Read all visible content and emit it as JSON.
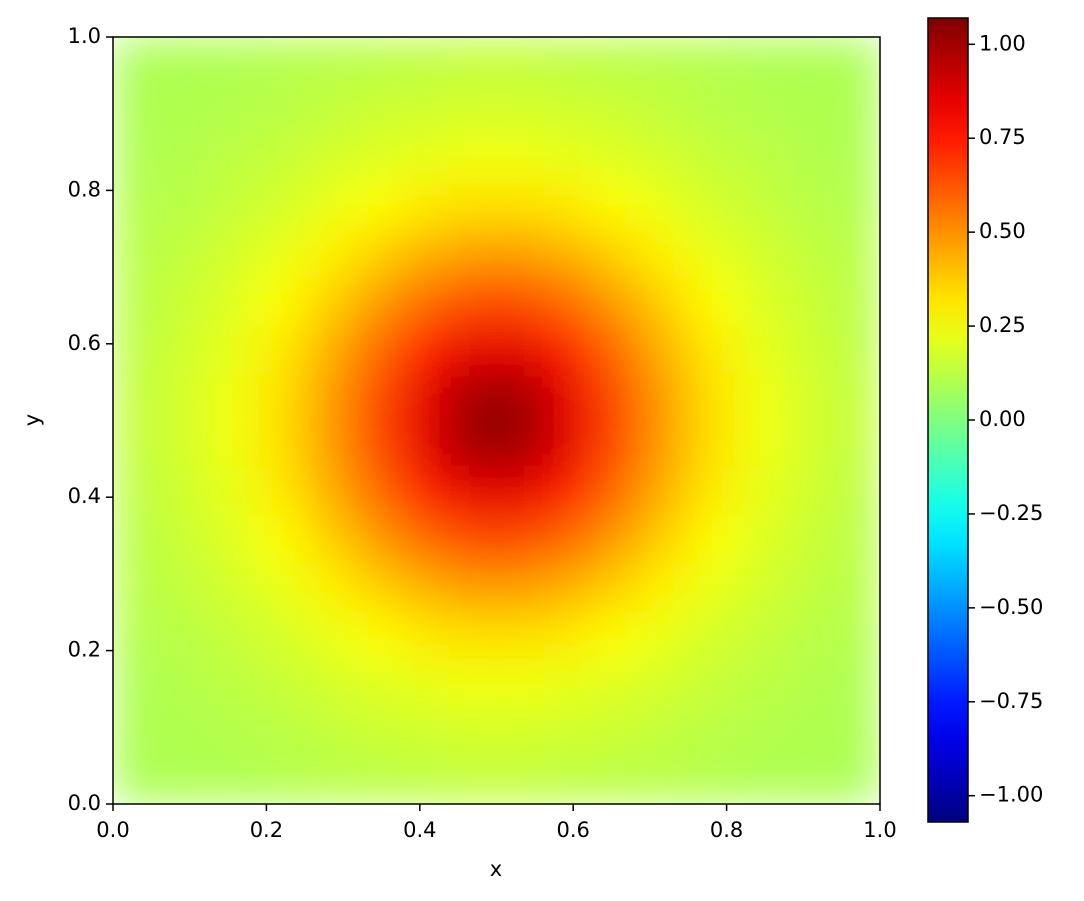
{
  "chart_data": {
    "type": "heatmap",
    "colormap": "jet",
    "xlabel": "x",
    "ylabel": "y",
    "xlim": [
      0,
      1
    ],
    "ylim": [
      0,
      1
    ],
    "xticks": [
      {
        "value": 0,
        "label": "0.0"
      },
      0.2,
      0.4,
      0.6,
      0.8,
      {
        "value": 1,
        "label": "1.0"
      }
    ],
    "yticks": [
      {
        "value": 0,
        "label": "0.0"
      },
      0.2,
      0.4,
      0.6,
      0.8,
      {
        "value": 1,
        "label": "1.0"
      }
    ],
    "clim": [
      -1.07,
      1.07
    ],
    "colorbar_ticks": [
      {
        "value": -1,
        "label": "−1.00"
      },
      {
        "value": -0.75,
        "label": "−0.75"
      },
      {
        "value": -0.5,
        "label": "−0.50"
      },
      {
        "value": -0.25,
        "label": "−0.25"
      },
      {
        "value": 0,
        "label": "0.00"
      },
      0.25,
      {
        "value": 0.5,
        "label": "0.50"
      },
      0.75,
      {
        "value": 1,
        "label": "1.00"
      }
    ],
    "z": [
      [
        0.09,
        0.1,
        0.1,
        0.11,
        0.12,
        0.12,
        0.13,
        0.14,
        0.14,
        0.13,
        0.12,
        0.12,
        0.11,
        0.1,
        0.1,
        0.09
      ],
      [
        0.1,
        0.1,
        0.11,
        0.12,
        0.14,
        0.16,
        0.17,
        0.18,
        0.18,
        0.17,
        0.16,
        0.14,
        0.12,
        0.11,
        0.1,
        0.1
      ],
      [
        0.1,
        0.11,
        0.13,
        0.15,
        0.18,
        0.2,
        0.22,
        0.24,
        0.24,
        0.22,
        0.2,
        0.18,
        0.15,
        0.13,
        0.11,
        0.1
      ],
      [
        0.11,
        0.12,
        0.15,
        0.18,
        0.22,
        0.27,
        0.31,
        0.33,
        0.33,
        0.31,
        0.27,
        0.22,
        0.18,
        0.15,
        0.12,
        0.11
      ],
      [
        0.12,
        0.14,
        0.18,
        0.22,
        0.29,
        0.36,
        0.43,
        0.47,
        0.47,
        0.43,
        0.36,
        0.29,
        0.22,
        0.18,
        0.14,
        0.12
      ],
      [
        0.12,
        0.16,
        0.2,
        0.27,
        0.36,
        0.47,
        0.58,
        0.65,
        0.65,
        0.58,
        0.47,
        0.36,
        0.27,
        0.2,
        0.16,
        0.12
      ],
      [
        0.13,
        0.17,
        0.22,
        0.31,
        0.43,
        0.58,
        0.74,
        0.85,
        0.85,
        0.74,
        0.58,
        0.43,
        0.31,
        0.22,
        0.17,
        0.13
      ],
      [
        0.14,
        0.18,
        0.24,
        0.33,
        0.47,
        0.65,
        0.85,
        1.01,
        1.01,
        0.85,
        0.65,
        0.47,
        0.33,
        0.24,
        0.18,
        0.14
      ],
      [
        0.14,
        0.18,
        0.24,
        0.33,
        0.47,
        0.65,
        0.85,
        1.01,
        1.01,
        0.85,
        0.65,
        0.47,
        0.33,
        0.24,
        0.18,
        0.14
      ],
      [
        0.13,
        0.17,
        0.22,
        0.31,
        0.43,
        0.58,
        0.74,
        0.85,
        0.85,
        0.74,
        0.58,
        0.43,
        0.31,
        0.22,
        0.17,
        0.13
      ],
      [
        0.12,
        0.16,
        0.2,
        0.27,
        0.36,
        0.47,
        0.58,
        0.65,
        0.65,
        0.58,
        0.47,
        0.36,
        0.27,
        0.2,
        0.16,
        0.12
      ],
      [
        0.12,
        0.14,
        0.18,
        0.22,
        0.29,
        0.36,
        0.43,
        0.47,
        0.47,
        0.43,
        0.36,
        0.29,
        0.22,
        0.18,
        0.14,
        0.12
      ],
      [
        0.11,
        0.12,
        0.15,
        0.18,
        0.22,
        0.27,
        0.31,
        0.33,
        0.33,
        0.31,
        0.27,
        0.22,
        0.18,
        0.15,
        0.12,
        0.11
      ],
      [
        0.1,
        0.11,
        0.13,
        0.15,
        0.18,
        0.2,
        0.22,
        0.24,
        0.24,
        0.22,
        0.2,
        0.18,
        0.15,
        0.13,
        0.11,
        0.1
      ],
      [
        0.1,
        0.1,
        0.11,
        0.12,
        0.14,
        0.16,
        0.17,
        0.18,
        0.18,
        0.17,
        0.16,
        0.14,
        0.12,
        0.11,
        0.1,
        0.1
      ],
      [
        0.09,
        0.1,
        0.1,
        0.11,
        0.12,
        0.12,
        0.13,
        0.14,
        0.14,
        0.13,
        0.12,
        0.12,
        0.11,
        0.1,
        0.1,
        0.09
      ]
    ]
  }
}
